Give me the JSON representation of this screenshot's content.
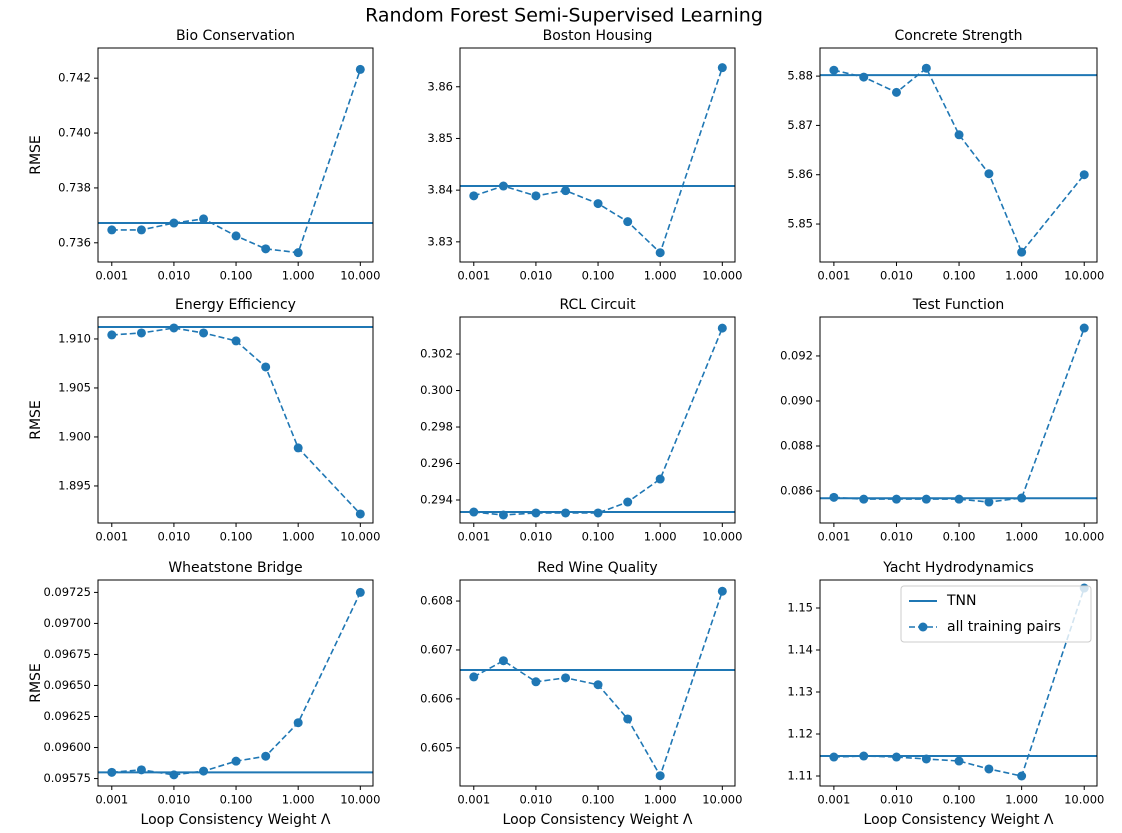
{
  "title": "Random Forest Semi-Supervised Learning",
  "chart_data": [
    {
      "type": "line",
      "title": "Bio Conservation",
      "ylabel": "RMSE",
      "xscale": "log",
      "x": [
        0.001,
        0.003,
        0.01,
        0.03,
        0.1,
        0.3,
        1,
        10
      ],
      "xlim": [
        0.0006,
        16
      ],
      "xticks": [
        {
          "value": 0.001,
          "label": "0.001"
        },
        {
          "value": 0.01,
          "label": "0.010"
        },
        {
          "value": 0.1,
          "label": "0.100"
        },
        {
          "value": 1,
          "label": "1.000"
        },
        {
          "value": 10,
          "label": "10.000"
        }
      ],
      "ylim": [
        0.7353,
        0.7431
      ],
      "yticks": [
        0.736,
        0.738,
        {
          "value": 0.74,
          "label": "0.740"
        },
        0.742
      ],
      "series": [
        {
          "name": "TNN",
          "color": "#1f77b4",
          "value": 0.73672
        },
        {
          "name": "all training pairs",
          "color": "#1f77b4",
          "values": [
            0.73647,
            0.73647,
            0.73672,
            0.73687,
            0.73625,
            0.73578,
            0.73564,
            0.74232
          ]
        }
      ]
    },
    {
      "type": "line",
      "title": "Boston Housing",
      "xscale": "log",
      "x": [
        0.001,
        0.003,
        0.01,
        0.03,
        0.1,
        0.3,
        1,
        10
      ],
      "xlim": [
        0.0006,
        16
      ],
      "xticks": [
        {
          "value": 0.001,
          "label": "0.001"
        },
        {
          "value": 0.01,
          "label": "0.010"
        },
        {
          "value": 0.1,
          "label": "0.100"
        },
        {
          "value": 1,
          "label": "1.000"
        },
        {
          "value": 10,
          "label": "10.000"
        }
      ],
      "ylim": [
        3.8261,
        3.8675
      ],
      "yticks": [
        3.83,
        3.84,
        3.85,
        3.86
      ],
      "series": [
        {
          "name": "TNN",
          "color": "#1f77b4",
          "value": 3.8408
        },
        {
          "name": "all training pairs",
          "color": "#1f77b4",
          "values": [
            3.8389,
            3.8408,
            3.8389,
            3.8399,
            3.8374,
            3.8339,
            3.8279,
            3.8637
          ]
        }
      ]
    },
    {
      "type": "line",
      "title": "Concrete Strength",
      "xscale": "log",
      "x": [
        0.001,
        0.003,
        0.01,
        0.03,
        0.1,
        0.3,
        1,
        10
      ],
      "xlim": [
        0.0006,
        16
      ],
      "xticks": [
        {
          "value": 0.001,
          "label": "0.001"
        },
        {
          "value": 0.01,
          "label": "0.010"
        },
        {
          "value": 0.1,
          "label": "0.100"
        },
        {
          "value": 1,
          "label": "1.000"
        },
        {
          "value": 10,
          "label": "10.000"
        }
      ],
      "ylim": [
        5.8423,
        5.8857
      ],
      "yticks": [
        5.85,
        5.86,
        5.87,
        5.88
      ],
      "series": [
        {
          "name": "TNN",
          "color": "#1f77b4",
          "value": 5.8802
        },
        {
          "name": "all training pairs",
          "color": "#1f77b4",
          "values": [
            5.8812,
            5.8798,
            5.8767,
            5.8816,
            5.8681,
            5.8602,
            5.8443,
            5.86
          ]
        }
      ]
    },
    {
      "type": "line",
      "title": "Energy Efficiency",
      "ylabel": "RMSE",
      "xscale": "log",
      "x": [
        0.001,
        0.003,
        0.01,
        0.03,
        0.1,
        0.3,
        1,
        10
      ],
      "xlim": [
        0.0006,
        16
      ],
      "xticks": [
        {
          "value": 0.001,
          "label": "0.001"
        },
        {
          "value": 0.01,
          "label": "0.010"
        },
        {
          "value": 0.1,
          "label": "0.100"
        },
        {
          "value": 1,
          "label": "1.000"
        },
        {
          "value": 10,
          "label": "10.000"
        }
      ],
      "ylim": [
        1.89122,
        1.91224
      ],
      "yticks": [
        1.895,
        {
          "value": 1.9,
          "label": "1.900"
        },
        1.905,
        {
          "value": 1.91,
          "label": "1.910"
        }
      ],
      "series": [
        {
          "name": "TNN",
          "color": "#1f77b4",
          "value": 1.91122
        },
        {
          "name": "all training pairs",
          "color": "#1f77b4",
          "values": [
            1.91041,
            1.91061,
            1.91112,
            1.91061,
            1.9098,
            1.90714,
            1.89888,
            1.89214
          ]
        }
      ]
    },
    {
      "type": "line",
      "title": "RCL Circuit",
      "xscale": "log",
      "x": [
        0.001,
        0.003,
        0.01,
        0.03,
        0.1,
        0.3,
        1,
        10
      ],
      "xlim": [
        0.0006,
        16
      ],
      "xticks": [
        {
          "value": 0.001,
          "label": "0.001"
        },
        {
          "value": 0.01,
          "label": "0.010"
        },
        {
          "value": 0.1,
          "label": "0.100"
        },
        {
          "value": 1,
          "label": "1.000"
        },
        {
          "value": 10,
          "label": "10.000"
        }
      ],
      "ylim": [
        0.29274,
        0.30403
      ],
      "yticks": [
        0.294,
        0.296,
        0.298,
        {
          "value": 0.3,
          "label": "0.300"
        },
        0.302
      ],
      "series": [
        {
          "name": "TNN",
          "color": "#1f77b4",
          "value": 0.29334
        },
        {
          "name": "all training pairs",
          "color": "#1f77b4",
          "values": [
            0.29334,
            0.29318,
            0.29329,
            0.29329,
            0.29329,
            0.29389,
            0.29515,
            0.30342
          ]
        }
      ]
    },
    {
      "type": "line",
      "title": "Test Function",
      "xscale": "log",
      "x": [
        0.001,
        0.003,
        0.01,
        0.03,
        0.1,
        0.3,
        1,
        10
      ],
      "xlim": [
        0.0006,
        16
      ],
      "xticks": [
        {
          "value": 0.001,
          "label": "0.001"
        },
        {
          "value": 0.01,
          "label": "0.010"
        },
        {
          "value": 0.1,
          "label": "0.100"
        },
        {
          "value": 1,
          "label": "1.000"
        },
        {
          "value": 10,
          "label": "10.000"
        }
      ],
      "ylim": [
        0.08458,
        0.09373
      ],
      "yticks": [
        0.086,
        0.088,
        {
          "value": 0.09,
          "label": "0.090"
        },
        0.092
      ],
      "series": [
        {
          "name": "TNN",
          "color": "#1f77b4",
          "value": 0.08568
        },
        {
          "name": "all training pairs",
          "color": "#1f77b4",
          "values": [
            0.08572,
            0.08564,
            0.08564,
            0.08564,
            0.08564,
            0.08551,
            0.08569,
            0.09324
          ]
        }
      ]
    },
    {
      "type": "line",
      "title": "Wheatstone Bridge",
      "ylabel": "RMSE",
      "xlabel": "Loop Consistency Weight Λ",
      "xscale": "log",
      "x": [
        0.001,
        0.003,
        0.01,
        0.03,
        0.1,
        0.3,
        1,
        10
      ],
      "xlim": [
        0.0006,
        16
      ],
      "xticks": [
        {
          "value": 0.001,
          "label": "0.001"
        },
        {
          "value": 0.01,
          "label": "0.010"
        },
        {
          "value": 0.1,
          "label": "0.100"
        },
        {
          "value": 1,
          "label": "1.000"
        },
        {
          "value": 10,
          "label": "10.000"
        }
      ],
      "ylim": [
        0.09569,
        0.09735
      ],
      "yticks": [
        0.09575,
        {
          "value": 0.096,
          "label": "0.09600"
        },
        0.09625,
        {
          "value": 0.0965,
          "label": "0.09650"
        },
        0.09675,
        {
          "value": 0.097,
          "label": "0.09700"
        },
        0.09725
      ],
      "series": [
        {
          "name": "TNN",
          "color": "#1f77b4",
          "value": 0.0958
        },
        {
          "name": "all training pairs",
          "color": "#1f77b4",
          "values": [
            0.0958,
            0.09582,
            0.09578,
            0.09581,
            0.09589,
            0.09593,
            0.0962,
            0.09725
          ]
        }
      ]
    },
    {
      "type": "line",
      "title": "Red Wine Quality",
      "xlabel": "Loop Consistency Weight Λ",
      "xscale": "log",
      "x": [
        0.001,
        0.003,
        0.01,
        0.03,
        0.1,
        0.3,
        1,
        10
      ],
      "xlim": [
        0.0006,
        16
      ],
      "xticks": [
        {
          "value": 0.001,
          "label": "0.001"
        },
        {
          "value": 0.01,
          "label": "0.010"
        },
        {
          "value": 0.1,
          "label": "0.100"
        },
        {
          "value": 1,
          "label": "1.000"
        },
        {
          "value": 10,
          "label": "10.000"
        }
      ],
      "ylim": [
        0.60422,
        0.60843
      ],
      "yticks": [
        0.605,
        0.606,
        0.607,
        0.608
      ],
      "series": [
        {
          "name": "TNN",
          "color": "#1f77b4",
          "value": 0.60659
        },
        {
          "name": "all training pairs",
          "color": "#1f77b4",
          "values": [
            0.60645,
            0.60678,
            0.60635,
            0.60643,
            0.60629,
            0.60559,
            0.60443,
            0.6082
          ]
        }
      ]
    },
    {
      "type": "line",
      "title": "Yacht Hydrodynamics",
      "xlabel": "Loop Consistency Weight Λ",
      "xscale": "log",
      "legend": "upper right",
      "x": [
        0.001,
        0.003,
        0.01,
        0.03,
        0.1,
        0.3,
        1,
        10
      ],
      "xlim": [
        0.0006,
        16
      ],
      "xticks": [
        {
          "value": 0.001,
          "label": "0.001"
        },
        {
          "value": 0.01,
          "label": "0.010"
        },
        {
          "value": 0.1,
          "label": "0.100"
        },
        {
          "value": 1,
          "label": "1.000"
        },
        {
          "value": 10,
          "label": "10.000"
        }
      ],
      "ylim": [
        1.10762,
        1.15667
      ],
      "yticks": [
        1.11,
        1.12,
        1.13,
        1.14,
        1.15
      ],
      "series": [
        {
          "name": "TNN",
          "color": "#1f77b4",
          "value": 1.11476
        },
        {
          "name": "all training pairs",
          "color": "#1f77b4",
          "values": [
            1.11452,
            1.11476,
            1.11452,
            1.11405,
            1.11357,
            1.11167,
            1.11,
            1.15476
          ]
        }
      ]
    }
  ]
}
